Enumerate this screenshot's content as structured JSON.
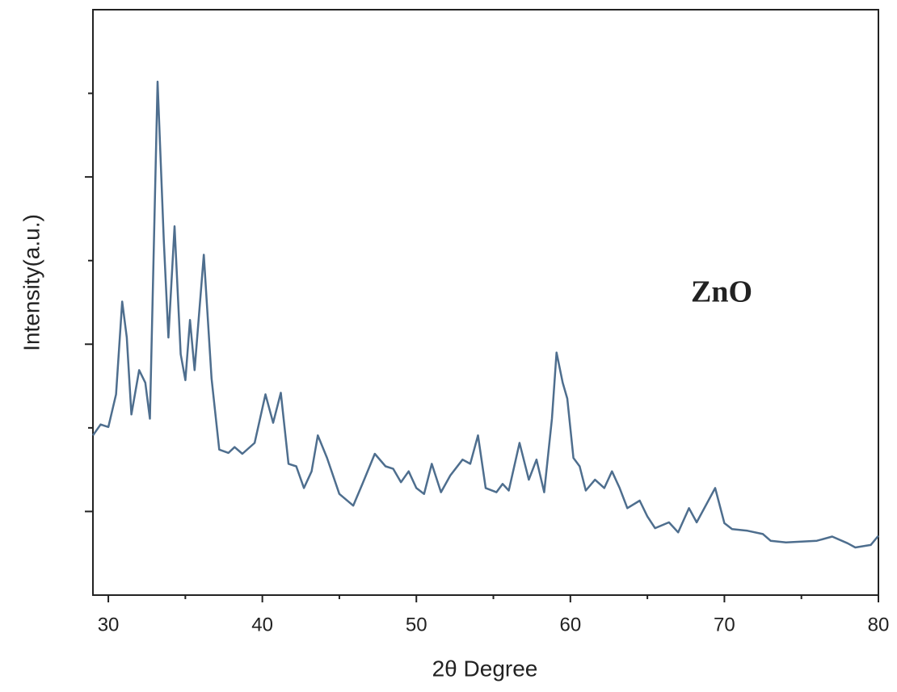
{
  "chart_data": {
    "type": "line",
    "ylabel": "Intensity(a.u.)",
    "xlabel": "2θ Degree",
    "annotation": "ZnO",
    "x": [
      29.0,
      29.5,
      30.0,
      30.5,
      30.9,
      31.2,
      31.5,
      32.0,
      32.4,
      32.7,
      33.2,
      33.6,
      33.9,
      34.3,
      34.7,
      35.0,
      35.3,
      35.6,
      36.2,
      36.7,
      37.2,
      37.8,
      38.2,
      38.7,
      39.5,
      40.2,
      40.7,
      41.2,
      41.7,
      42.2,
      42.7,
      43.2,
      43.6,
      44.2,
      45.0,
      45.9,
      46.5,
      47.3,
      48.0,
      48.5,
      49.0,
      49.5,
      50.0,
      50.5,
      51.0,
      51.6,
      52.2,
      53.0,
      53.5,
      54.0,
      54.5,
      55.2,
      55.6,
      56.0,
      56.7,
      57.3,
      57.8,
      58.3,
      58.8,
      59.1,
      59.5,
      59.8,
      60.2,
      60.6,
      61.0,
      61.6,
      62.2,
      62.7,
      63.2,
      63.7,
      64.5,
      65.0,
      65.5,
      66.4,
      67.0,
      67.7,
      68.2,
      69.4,
      70.0,
      70.5,
      71.5,
      72.5,
      73.0,
      74.0,
      75.0,
      76.0,
      77.0,
      78.0,
      78.5,
      79.5,
      80.0
    ],
    "series": [
      {
        "name": "ZnO",
        "color": "#4e6e8e",
        "values": [
          1.91,
          2.04,
          2.01,
          2.4,
          3.51,
          3.08,
          2.16,
          2.69,
          2.54,
          2.11,
          6.14,
          4.24,
          3.08,
          4.41,
          2.88,
          2.57,
          3.29,
          2.69,
          4.07,
          2.59,
          1.74,
          1.7,
          1.77,
          1.69,
          1.82,
          2.4,
          2.06,
          2.42,
          1.57,
          1.54,
          1.28,
          1.48,
          1.91,
          1.64,
          1.21,
          1.07,
          1.33,
          1.69,
          1.54,
          1.51,
          1.35,
          1.48,
          1.28,
          1.21,
          1.57,
          1.23,
          1.43,
          1.62,
          1.57,
          1.91,
          1.28,
          1.23,
          1.33,
          1.25,
          1.82,
          1.38,
          1.62,
          1.23,
          2.11,
          2.9,
          2.54,
          2.35,
          1.64,
          1.54,
          1.25,
          1.38,
          1.28,
          1.48,
          1.28,
          1.04,
          1.13,
          0.94,
          0.8,
          0.87,
          0.75,
          1.04,
          0.87,
          1.28,
          0.86,
          0.79,
          0.77,
          0.73,
          0.65,
          0.63,
          0.64,
          0.65,
          0.7,
          0.62,
          0.57,
          0.6,
          0.71
        ]
      }
    ],
    "xlim": [
      29,
      80
    ],
    "xticks": [
      30,
      40,
      50,
      60,
      70,
      80
    ],
    "xminorticks": [
      35,
      45,
      55,
      65,
      75
    ],
    "ylim": [
      0,
      7
    ],
    "yticks": [
      1,
      2,
      3,
      4,
      5,
      6
    ],
    "grid": false
  }
}
